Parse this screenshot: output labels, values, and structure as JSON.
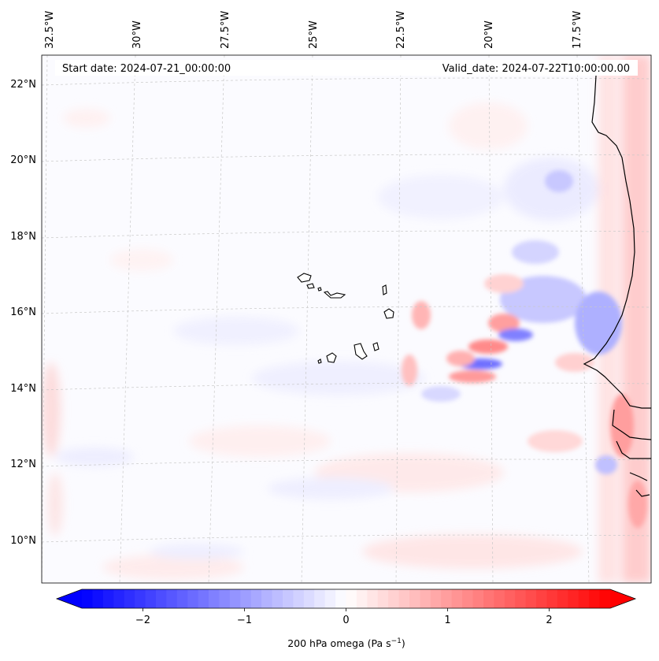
{
  "map": {
    "lon_labels": [
      "32.5°W",
      "30°W",
      "27.5°W",
      "25°W",
      "22.5°W",
      "20°W",
      "17.5°W"
    ],
    "lat_labels": [
      "22°N",
      "20°N",
      "18°N",
      "16°N",
      "14°N",
      "12°N",
      "10°N"
    ],
    "start_date": "Start date: 2024-07-21_00:00:00",
    "valid_date": "Valid_date: 2024-07-22T10:00:00.00",
    "field": "200 hPa omega"
  },
  "colorbar": {
    "ticks": [
      "−2",
      "−1",
      "0",
      "1",
      "2"
    ],
    "label": "200 hPa omega (Pa s",
    "label_exp": "−1",
    "label_close": ")",
    "range": [
      -2.6,
      2.6
    ],
    "colormap": "bwr",
    "colors": {
      "low": "#0000ff",
      "mid": "#ffffff",
      "high": "#ff0000"
    }
  }
}
